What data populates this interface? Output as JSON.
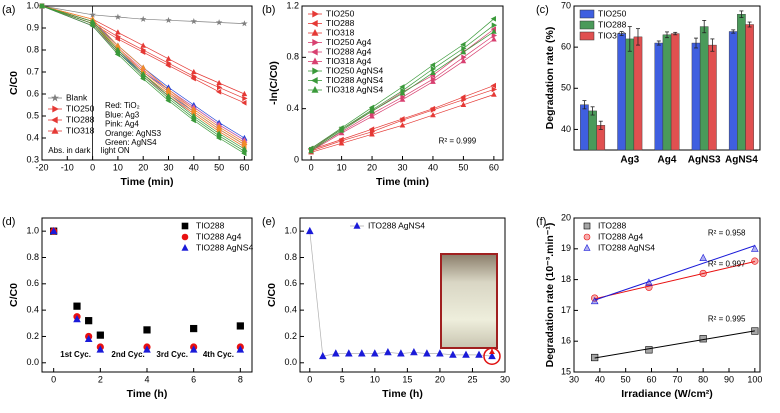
{
  "chart_data": [
    {
      "type": "line",
      "panel_label": "(a)",
      "x_label": "Time (min)",
      "y_label": "C/C0",
      "x": [
        -20,
        0,
        10,
        20,
        30,
        40,
        50,
        60
      ],
      "xlim": [
        -20,
        63
      ],
      "xticks": [
        -20,
        -10,
        0,
        10,
        20,
        30,
        40,
        50,
        60
      ],
      "ylim": [
        0.3,
        1.0
      ],
      "yticks": [
        0.3,
        0.4,
        0.5,
        0.6,
        0.7,
        0.8,
        0.9,
        {
          "value": 1.0,
          "label": "1.0"
        }
      ],
      "legend": "bottom-left",
      "annotations": [
        "Abs. in dark",
        "light ON",
        "Red: TiO₂",
        "Blue: Ag3",
        "Pink: Ag4",
        "Orange: AgNS3",
        "Green: AgNS4"
      ],
      "series": [
        {
          "name": "Blank",
          "color": "#808080",
          "marker": "star",
          "values": [
            1.0,
            0.96,
            0.95,
            0.94,
            0.935,
            0.93,
            0.925,
            0.92
          ]
        },
        {
          "name": "TIO250",
          "color": "#e53935",
          "marker": "triangle-right",
          "values": [
            1.0,
            0.93,
            0.86,
            0.8,
            0.74,
            0.68,
            0.63,
            0.58
          ]
        },
        {
          "name": "TIO288",
          "color": "#e53935",
          "marker": "triangle-left",
          "values": [
            1.0,
            0.92,
            0.85,
            0.79,
            0.73,
            0.67,
            0.61,
            0.56
          ]
        },
        {
          "name": "TIO318",
          "color": "#e53935",
          "marker": "triangle-up",
          "values": [
            1.0,
            0.94,
            0.88,
            0.82,
            0.76,
            0.7,
            0.65,
            0.6
          ]
        },
        {
          "name": "TIO250",
          "color": "#2040d8",
          "marker": "triangle-right",
          "values": [
            1.0,
            0.92,
            0.8,
            0.7,
            0.62,
            0.54,
            0.46,
            0.39
          ]
        },
        {
          "name": "TIO288",
          "color": "#2040d8",
          "marker": "triangle-left",
          "values": [
            1.0,
            0.91,
            0.79,
            0.69,
            0.6,
            0.52,
            0.44,
            0.37
          ]
        },
        {
          "name": "TIO318",
          "color": "#2040d8",
          "marker": "triangle-up",
          "values": [
            1.0,
            0.93,
            0.82,
            0.72,
            0.63,
            0.55,
            0.47,
            0.4
          ]
        },
        {
          "name": "TIO250",
          "color": "#e0609a",
          "marker": "triangle-right",
          "values": [
            1.0,
            0.92,
            0.8,
            0.7,
            0.61,
            0.53,
            0.45,
            0.38
          ]
        },
        {
          "name": "TIO288",
          "color": "#e0609a",
          "marker": "triangle-left",
          "values": [
            1.0,
            0.91,
            0.79,
            0.68,
            0.59,
            0.51,
            0.43,
            0.36
          ]
        },
        {
          "name": "TIO318",
          "color": "#e0609a",
          "marker": "triangle-up",
          "values": [
            1.0,
            0.93,
            0.81,
            0.71,
            0.62,
            0.54,
            0.46,
            0.39
          ]
        },
        {
          "name": "TIO250",
          "color": "#f28c28",
          "marker": "triangle-right",
          "values": [
            1.0,
            0.93,
            0.81,
            0.7,
            0.61,
            0.52,
            0.44,
            0.37
          ]
        },
        {
          "name": "TIO288",
          "color": "#f28c28",
          "marker": "triangle-left",
          "values": [
            1.0,
            0.92,
            0.8,
            0.69,
            0.6,
            0.51,
            0.43,
            0.36
          ]
        },
        {
          "name": "TIO318",
          "color": "#f28c28",
          "marker": "triangle-up",
          "values": [
            1.0,
            0.94,
            0.82,
            0.72,
            0.62,
            0.53,
            0.45,
            0.38
          ]
        },
        {
          "name": "TIO250",
          "color": "#3a9a3a",
          "marker": "triangle-right",
          "values": [
            1.0,
            0.92,
            0.79,
            0.68,
            0.58,
            0.49,
            0.41,
            0.34
          ]
        },
        {
          "name": "TIO288",
          "color": "#3a9a3a",
          "marker": "triangle-left",
          "values": [
            1.0,
            0.91,
            0.78,
            0.67,
            0.57,
            0.48,
            0.4,
            0.33
          ]
        },
        {
          "name": "TIO318",
          "color": "#3a9a3a",
          "marker": "triangle-up",
          "values": [
            1.0,
            0.93,
            0.8,
            0.69,
            0.59,
            0.5,
            0.42,
            0.35
          ]
        }
      ]
    },
    {
      "type": "line",
      "panel_label": "(b)",
      "x_label": "Time (min)",
      "y_label": "-ln(C/C0)",
      "x": [
        0,
        10,
        20,
        30,
        40,
        50,
        60
      ],
      "xlim": [
        -3,
        63
      ],
      "xticks": [
        0,
        10,
        20,
        30,
        40,
        50,
        60
      ],
      "ylim": [
        0,
        1.2
      ],
      "yticks": [
        0,
        0.4,
        0.8,
        1.2
      ],
      "legend": "top-left",
      "annotations": [
        "R² = 0.999"
      ],
      "series": [
        {
          "name": "TIO250",
          "color": "#e53935",
          "marker": "triangle-right",
          "values": [
            0.07,
            0.15,
            0.22,
            0.31,
            0.39,
            0.47,
            0.55
          ]
        },
        {
          "name": "TIO288",
          "color": "#e53935",
          "marker": "triangle-left",
          "values": [
            0.08,
            0.16,
            0.24,
            0.32,
            0.4,
            0.49,
            0.58
          ]
        },
        {
          "name": "TIO318",
          "color": "#e53935",
          "marker": "triangle-up",
          "values": [
            0.06,
            0.13,
            0.2,
            0.27,
            0.35,
            0.43,
            0.51
          ]
        },
        {
          "name": "TIO250 Ag4",
          "color": "#d84070",
          "marker": "triangle-right",
          "values": [
            0.08,
            0.22,
            0.36,
            0.49,
            0.63,
            0.8,
            0.97
          ]
        },
        {
          "name": "TIO288 Ag4",
          "color": "#d84070",
          "marker": "triangle-left",
          "values": [
            0.09,
            0.24,
            0.38,
            0.53,
            0.66,
            0.84,
            1.02
          ]
        },
        {
          "name": "TIO318 Ag4",
          "color": "#d84070",
          "marker": "triangle-up",
          "values": [
            0.07,
            0.21,
            0.34,
            0.47,
            0.61,
            0.77,
            0.94
          ]
        },
        {
          "name": "TIO250 AgNS4",
          "color": "#3a9a3a",
          "marker": "triangle-right",
          "values": [
            0.08,
            0.24,
            0.39,
            0.54,
            0.71,
            0.87,
            1.05
          ]
        },
        {
          "name": "TIO288 AgNS4",
          "color": "#3a9a3a",
          "marker": "triangle-left",
          "values": [
            0.09,
            0.25,
            0.41,
            0.57,
            0.74,
            0.9,
            1.1
          ]
        },
        {
          "name": "TIO318 AgNS4",
          "color": "#3a9a3a",
          "marker": "triangle-up",
          "values": [
            0.07,
            0.23,
            0.38,
            0.52,
            0.68,
            0.84,
            1.0
          ]
        }
      ]
    },
    {
      "type": "bar",
      "panel_label": "(c)",
      "y_label": "Degradation rate (%)",
      "categories": [
        null,
        "Ag3",
        "Ag4",
        "AgNS3",
        "AgNS4"
      ],
      "ylim": [
        35,
        70
      ],
      "yticks": [
        40,
        50,
        60,
        70
      ],
      "legend": "top-left",
      "series": [
        {
          "name": "TIO250",
          "color": "#3f5fe0",
          "values": [
            46,
            63.3,
            61,
            61,
            63.8
          ],
          "errors": [
            1,
            0.5,
            0.5,
            1.2,
            0.4
          ]
        },
        {
          "name": "TIO288",
          "color": "#4a9a5a",
          "values": [
            44.5,
            62,
            63,
            65,
            68
          ],
          "errors": [
            1,
            3,
            0.7,
            1.5,
            0.8
          ]
        },
        {
          "name": "TIO318",
          "color": "#e05050",
          "values": [
            41,
            62.5,
            63.3,
            60.5,
            65.5
          ],
          "errors": [
            1,
            2,
            0.3,
            1.5,
            0.6
          ]
        }
      ]
    },
    {
      "type": "scatter",
      "panel_label": "(d)",
      "x_label": "Time (h)",
      "y_label": "C/C0",
      "x": [
        0,
        1,
        1.5,
        2,
        4,
        6,
        8
      ],
      "xlim": [
        -0.5,
        8.5
      ],
      "xticks": [
        0,
        2,
        4,
        6,
        8
      ],
      "ylim": [
        -0.07,
        1.1
      ],
      "yticks": [
        {
          "value": 0,
          "label": "0.0"
        },
        0.2,
        0.4,
        0.6,
        0.8,
        {
          "value": 1.0,
          "label": "1.0"
        }
      ],
      "legend": "top-right",
      "annotations": [
        "1st Cyc.",
        "2nd Cyc.",
        "3rd Cyc.",
        "4th Cyc."
      ],
      "series": [
        {
          "name": "TIO288",
          "color": "#000000",
          "marker": "square",
          "values": [
            1.0,
            0.43,
            0.32,
            0.21,
            0.25,
            0.26,
            0.28
          ]
        },
        {
          "name": "TIO288 Ag4",
          "color": "#e81010",
          "marker": "circle",
          "values": [
            1.0,
            0.35,
            0.2,
            0.12,
            0.12,
            0.12,
            0.12
          ]
        },
        {
          "name": "TIO288 AgNS4",
          "color": "#1a1ad8",
          "marker": "triangle-up",
          "values": [
            1.0,
            0.33,
            0.18,
            0.1,
            0.1,
            0.1,
            0.1
          ]
        }
      ]
    },
    {
      "type": "line",
      "panel_label": "(e)",
      "x_label": "Time (h)",
      "y_label": "C/C0",
      "x": [
        0,
        2,
        4,
        6,
        8,
        10,
        12,
        14,
        16,
        18,
        20,
        22,
        24,
        26,
        28
      ],
      "xlim": [
        -1.5,
        30
      ],
      "xticks": [
        0,
        5,
        10,
        15,
        20,
        25,
        30
      ],
      "ylim": [
        -0.07,
        1.1
      ],
      "yticks": [
        {
          "value": 0,
          "label": "0.0"
        },
        0.2,
        0.4,
        0.6,
        0.8,
        {
          "value": 1.0,
          "label": "1.0"
        }
      ],
      "legend": "top-right",
      "series": [
        {
          "name": "ITO288 AgNS4",
          "color": "#1a1ad8",
          "marker": "triangle-up",
          "line_color": "#b0b0b0",
          "values": [
            1.0,
            0.05,
            0.07,
            0.07,
            0.07,
            0.07,
            0.08,
            0.07,
            0.08,
            0.07,
            0.07,
            0.06,
            0.06,
            0.06,
            0.05
          ]
        }
      ]
    },
    {
      "type": "scatter",
      "panel_label": "(f)",
      "x_label": "Irradiance (W/cm²)",
      "y_label": "Degradation rate (10⁻³.min⁻¹)",
      "x": [
        38,
        59,
        80,
        100
      ],
      "xlim": [
        30,
        102
      ],
      "xticks": [
        30,
        40,
        50,
        60,
        70,
        80,
        90,
        100
      ],
      "ylim": [
        15,
        20
      ],
      "yticks": [
        15,
        16,
        17,
        18,
        19,
        20
      ],
      "legend": "top-left",
      "fit": true,
      "annotations": [
        "R² = 0.958",
        "R² = 0.997",
        "R² = 0.995"
      ],
      "series": [
        {
          "name": "ITO288",
          "color": "#000000",
          "marker": "square",
          "values": [
            15.47,
            15.72,
            16.08,
            16.33
          ]
        },
        {
          "name": "ITO288 Ag4",
          "color": "#e81010",
          "marker": "circle",
          "values": [
            17.4,
            17.75,
            18.2,
            18.6
          ]
        },
        {
          "name": "ITO288 AgNS4",
          "color": "#1a1ad8",
          "marker": "triangle-up",
          "values": [
            17.3,
            17.9,
            18.7,
            19.0
          ]
        }
      ]
    }
  ]
}
